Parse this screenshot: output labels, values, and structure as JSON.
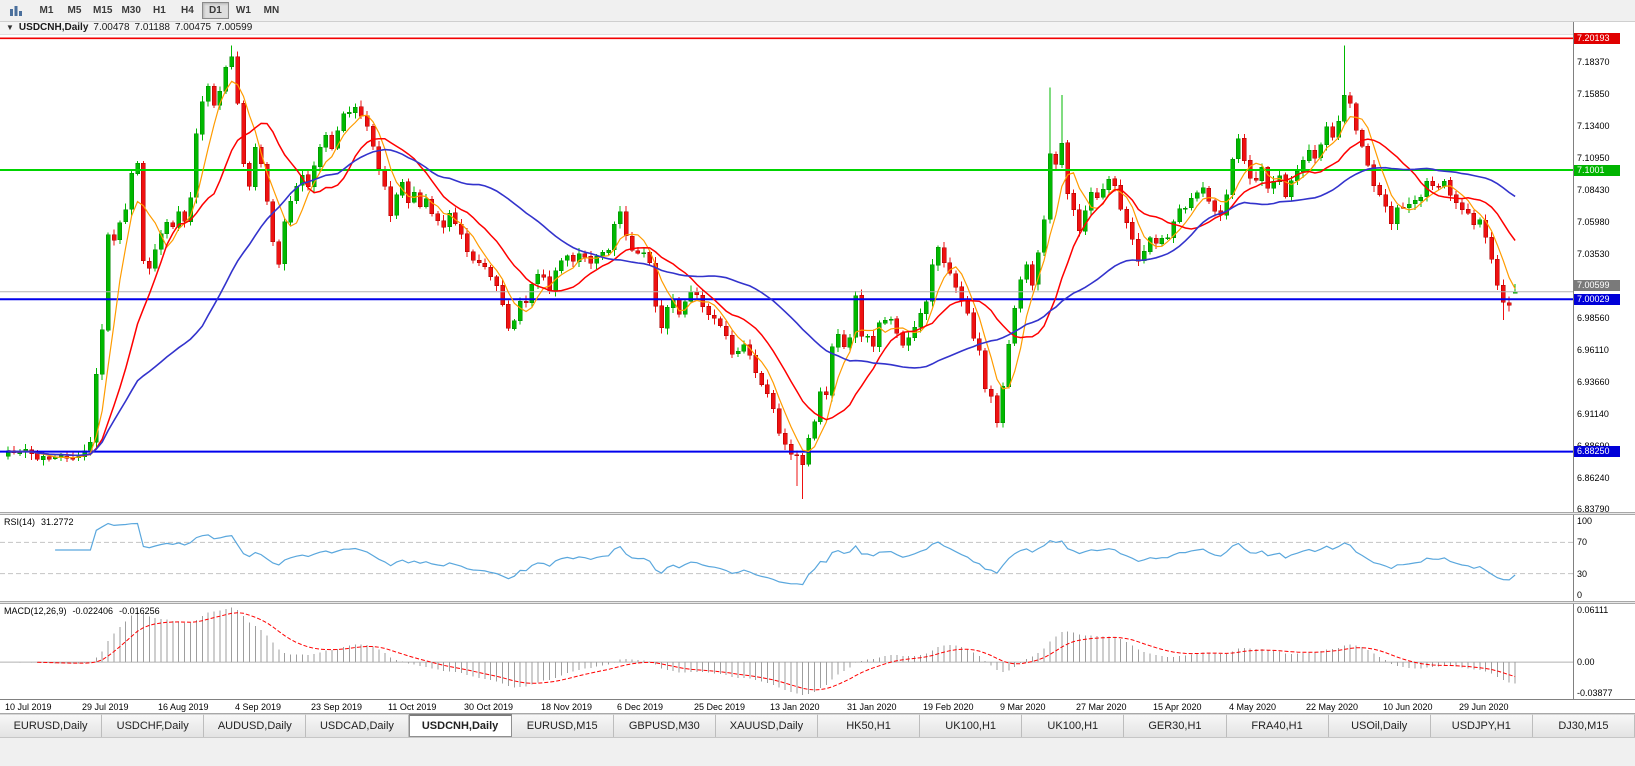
{
  "toolbar": {
    "timeframes": [
      {
        "label": "M1",
        "active": false
      },
      {
        "label": "M5",
        "active": false
      },
      {
        "label": "M15",
        "active": false
      },
      {
        "label": "M30",
        "active": false
      },
      {
        "label": "H1",
        "active": false
      },
      {
        "label": "H4",
        "active": false
      },
      {
        "label": "D1",
        "active": true
      },
      {
        "label": "W1",
        "active": false
      },
      {
        "label": "MN",
        "active": false
      }
    ]
  },
  "chart": {
    "title": {
      "symbol": "USDCNH,Daily",
      "open": "7.00478",
      "high": "7.01188",
      "low": "7.00475",
      "close": "7.00599"
    },
    "price_scale": {
      "labels": [
        "7.18370",
        "7.15850",
        "7.13400",
        "7.10950",
        "7.08430",
        "7.05980",
        "7.03530",
        "7.01080",
        "6.98560",
        "6.96110",
        "6.93660",
        "6.91140",
        "6.88690",
        "6.86240",
        "6.83790"
      ]
    },
    "hlines": [
      {
        "price": 7.20193,
        "label": "7.20193",
        "color": "#f20000",
        "tag_bg": "#e00000",
        "w": 1.6
      },
      {
        "price": 7.1001,
        "label": "7.1001",
        "color": "#00d400",
        "tag_bg": "#00b400",
        "w": 2
      },
      {
        "price": 7.00029,
        "label": "7.00029",
        "color": "#0000ee",
        "tag_bg": "#0000d8",
        "w": 2
      },
      {
        "price": 6.8825,
        "label": "6.88250",
        "color": "#0000ee",
        "tag_bg": "#0000d8",
        "w": 2
      }
    ],
    "current_price": {
      "price": 7.00599,
      "label": "7.00599",
      "line_color": "#b4b4b4",
      "tag_bg": "#7a7a7a"
    },
    "time_axis": [
      {
        "text": "10 Jul 2019",
        "i": 0
      },
      {
        "text": "29 Jul 2019",
        "i": 13
      },
      {
        "text": "16 Aug 2019",
        "i": 26
      },
      {
        "text": "4 Sep 2019",
        "i": 39
      },
      {
        "text": "23 Sep 2019",
        "i": 52
      },
      {
        "text": "11 Oct 2019",
        "i": 65
      },
      {
        "text": "30 Oct 2019",
        "i": 78
      },
      {
        "text": "18 Nov 2019",
        "i": 91
      },
      {
        "text": "6 Dec 2019",
        "i": 104
      },
      {
        "text": "25 Dec 2019",
        "i": 117
      },
      {
        "text": "13 Jan 2020",
        "i": 130
      },
      {
        "text": "31 Jan 2020",
        "i": 143
      },
      {
        "text": "19 Feb 2020",
        "i": 156
      },
      {
        "text": "9 Mar 2020",
        "i": 169
      },
      {
        "text": "27 Mar 2020",
        "i": 182
      },
      {
        "text": "15 Apr 2020",
        "i": 195
      },
      {
        "text": "4 May 2020",
        "i": 208
      },
      {
        "text": "22 May 2020",
        "i": 221
      },
      {
        "text": "10 Jun 2020",
        "i": 234
      },
      {
        "text": "29 Jun 2020",
        "i": 247
      }
    ],
    "candles": {
      "count": 257,
      "up_color": "#00b800",
      "down_color": "#ee1111",
      "up_stroke": "#008800",
      "down_stroke": "#aa0000",
      "anchors": [
        [
          0,
          6.881
        ],
        [
          3,
          6.8845
        ],
        [
          5,
          6.876
        ],
        [
          8,
          6.8805
        ],
        [
          11,
          6.8775
        ],
        [
          13,
          6.883
        ],
        [
          14,
          6.89
        ],
        [
          15,
          6.942
        ],
        [
          16,
          6.975
        ],
        [
          17,
          7.05
        ],
        [
          18,
          7.046
        ],
        [
          19,
          7.061
        ],
        [
          20,
          7.072
        ],
        [
          21,
          7.096
        ],
        [
          22,
          7.106
        ],
        [
          23,
          7.032
        ],
        [
          24,
          7.026
        ],
        [
          25,
          7.04
        ],
        [
          26,
          7.05
        ],
        [
          27,
          7.06
        ],
        [
          28,
          7.054
        ],
        [
          29,
          7.066
        ],
        [
          30,
          7.059
        ],
        [
          31,
          7.08
        ],
        [
          32,
          7.128
        ],
        [
          33,
          7.154
        ],
        [
          34,
          7.164
        ],
        [
          35,
          7.15
        ],
        [
          36,
          7.16
        ],
        [
          37,
          7.178
        ],
        [
          38,
          7.188
        ],
        [
          39,
          7.15
        ],
        [
          40,
          7.104
        ],
        [
          41,
          7.09
        ],
        [
          42,
          7.116
        ],
        [
          43,
          7.104
        ],
        [
          44,
          7.076
        ],
        [
          45,
          7.046
        ],
        [
          46,
          7.028
        ],
        [
          47,
          7.058
        ],
        [
          48,
          7.078
        ],
        [
          49,
          7.088
        ],
        [
          50,
          7.094
        ],
        [
          51,
          7.086
        ],
        [
          52,
          7.104
        ],
        [
          53,
          7.116
        ],
        [
          54,
          7.126
        ],
        [
          55,
          7.118
        ],
        [
          56,
          7.132
        ],
        [
          57,
          7.146
        ],
        [
          59,
          7.148
        ],
        [
          61,
          7.133
        ],
        [
          63,
          7.103
        ],
        [
          64,
          7.086
        ],
        [
          65,
          7.066
        ],
        [
          66,
          7.08
        ],
        [
          67,
          7.093
        ],
        [
          68,
          7.076
        ],
        [
          69,
          7.083
        ],
        [
          70,
          7.07
        ],
        [
          71,
          7.08
        ],
        [
          72,
          7.068
        ],
        [
          74,
          7.056
        ],
        [
          75,
          7.068
        ],
        [
          77,
          7.05
        ],
        [
          78,
          7.038
        ],
        [
          79,
          7.03
        ],
        [
          81,
          7.026
        ],
        [
          82,
          7.02
        ],
        [
          83,
          7.01
        ],
        [
          84,
          6.996
        ],
        [
          85,
          6.976
        ],
        [
          86,
          6.986
        ],
        [
          87,
          7.0
        ],
        [
          88,
          6.996
        ],
        [
          89,
          7.01
        ],
        [
          90,
          7.02
        ],
        [
          91,
          7.016
        ],
        [
          92,
          7.006
        ],
        [
          93,
          7.02
        ],
        [
          95,
          7.036
        ],
        [
          96,
          7.028
        ],
        [
          97,
          7.036
        ],
        [
          99,
          7.026
        ],
        [
          100,
          7.033
        ],
        [
          102,
          7.038
        ],
        [
          103,
          7.06
        ],
        [
          104,
          7.066
        ],
        [
          105,
          7.05
        ],
        [
          106,
          7.036
        ],
        [
          108,
          7.036
        ],
        [
          109,
          7.03
        ],
        [
          110,
          6.996
        ],
        [
          111,
          6.98
        ],
        [
          112,
          6.996
        ],
        [
          113,
          7.0
        ],
        [
          114,
          6.99
        ],
        [
          116,
          7.006
        ],
        [
          117,
          7.003
        ],
        [
          119,
          6.99
        ],
        [
          121,
          6.98
        ],
        [
          122,
          6.97
        ],
        [
          123,
          6.96
        ],
        [
          124,
          6.958
        ],
        [
          125,
          6.966
        ],
        [
          126,
          6.956
        ],
        [
          127,
          6.943
        ],
        [
          129,
          6.928
        ],
        [
          130,
          6.916
        ],
        [
          131,
          6.896
        ],
        [
          132,
          6.886
        ],
        [
          134,
          6.878
        ],
        [
          135,
          6.87
        ],
        [
          136,
          6.894
        ],
        [
          137,
          6.906
        ],
        [
          138,
          6.93
        ],
        [
          139,
          6.926
        ],
        [
          140,
          6.966
        ],
        [
          141,
          6.973
        ],
        [
          142,
          6.966
        ],
        [
          143,
          6.97
        ],
        [
          144,
          7.002
        ],
        [
          145,
          6.974
        ],
        [
          147,
          6.966
        ],
        [
          148,
          6.98
        ],
        [
          150,
          6.983
        ],
        [
          152,
          6.963
        ],
        [
          154,
          6.98
        ],
        [
          155,
          6.99
        ],
        [
          156,
          7.0
        ],
        [
          157,
          7.026
        ],
        [
          158,
          7.04
        ],
        [
          159,
          7.03
        ],
        [
          161,
          7.01
        ],
        [
          163,
          6.99
        ],
        [
          164,
          6.97
        ],
        [
          165,
          6.96
        ],
        [
          166,
          6.93
        ],
        [
          167,
          6.926
        ],
        [
          168,
          6.905
        ],
        [
          169,
          6.932
        ],
        [
          170,
          6.968
        ],
        [
          171,
          6.995
        ],
        [
          172,
          7.016
        ],
        [
          173,
          7.025
        ],
        [
          174,
          7.01
        ],
        [
          175,
          7.036
        ],
        [
          176,
          7.06
        ],
        [
          177,
          7.115
        ],
        [
          178,
          7.105
        ],
        [
          179,
          7.12
        ],
        [
          180,
          7.08
        ],
        [
          181,
          7.07
        ],
        [
          182,
          7.052
        ],
        [
          184,
          7.082
        ],
        [
          185,
          7.078
        ],
        [
          186,
          7.085
        ],
        [
          187,
          7.095
        ],
        [
          188,
          7.088
        ],
        [
          189,
          7.07
        ],
        [
          191,
          7.046
        ],
        [
          192,
          7.03
        ],
        [
          193,
          7.036
        ],
        [
          194,
          7.05
        ],
        [
          195,
          7.046
        ],
        [
          197,
          7.05
        ],
        [
          199,
          7.07
        ],
        [
          201,
          7.076
        ],
        [
          203,
          7.086
        ],
        [
          205,
          7.07
        ],
        [
          206,
          7.063
        ],
        [
          207,
          7.083
        ],
        [
          208,
          7.108
        ],
        [
          209,
          7.126
        ],
        [
          210,
          7.106
        ],
        [
          211,
          7.096
        ],
        [
          212,
          7.09
        ],
        [
          213,
          7.1
        ],
        [
          214,
          7.086
        ],
        [
          216,
          7.096
        ],
        [
          217,
          7.08
        ],
        [
          219,
          7.1
        ],
        [
          220,
          7.106
        ],
        [
          221,
          7.116
        ],
        [
          222,
          7.11
        ],
        [
          223,
          7.12
        ],
        [
          224,
          7.136
        ],
        [
          225,
          7.126
        ],
        [
          226,
          7.14
        ],
        [
          227,
          7.16
        ],
        [
          228,
          7.15
        ],
        [
          229,
          7.13
        ],
        [
          230,
          7.12
        ],
        [
          232,
          7.09
        ],
        [
          234,
          7.07
        ],
        [
          235,
          7.06
        ],
        [
          236,
          7.07
        ],
        [
          238,
          7.076
        ],
        [
          240,
          7.08
        ],
        [
          241,
          7.09
        ],
        [
          243,
          7.086
        ],
        [
          244,
          7.09
        ],
        [
          246,
          7.076
        ],
        [
          247,
          7.07
        ],
        [
          249,
          7.06
        ],
        [
          250,
          7.063
        ],
        [
          251,
          7.05
        ],
        [
          252,
          7.03
        ],
        [
          253,
          7.01
        ],
        [
          254,
          7.0
        ],
        [
          255,
          6.998
        ],
        [
          256,
          7.006
        ]
      ],
      "overrides": {
        "38": {
          "h": 7.1965
        },
        "134": {
          "l": 6.856
        },
        "135": {
          "l": 6.846
        },
        "168": {
          "l": 6.901
        },
        "177": {
          "h": 7.164
        },
        "179": {
          "h": 7.158
        },
        "227": {
          "h": 7.1965
        },
        "254": {
          "l": 6.984
        },
        "256": {
          "o": 7.00478,
          "h": 7.01188,
          "l": 7.00475,
          "c": 7.00599
        }
      }
    },
    "mas": [
      {
        "name": "fast-ma",
        "period": 5,
        "color": "#ff9c00",
        "w": 1.2
      },
      {
        "name": "mid-ma",
        "period": 13,
        "color": "#ff0000",
        "w": 1.5
      },
      {
        "name": "slow-ma",
        "period": 34,
        "color": "#3333cc",
        "w": 1.6
      }
    ]
  },
  "rsi": {
    "label": "RSI(14)",
    "value": "31.2772",
    "period": 14,
    "color": "#5aa7dd",
    "levels": [
      {
        "v": 100,
        "text": "100",
        "dashed": false
      },
      {
        "v": 70,
        "text": "70",
        "dashed": true
      },
      {
        "v": 30,
        "text": "30",
        "dashed": true
      },
      {
        "v": 0,
        "text": "0",
        "dashed": false
      }
    ]
  },
  "macd": {
    "label": "MACD(12,26,9)",
    "value_main": "-0.022406",
    "value_signal": "-0.016256",
    "fast": 12,
    "slow": 26,
    "signal": 9,
    "hist_color": "#9e9e9e",
    "signal_color": "#ff0000",
    "scale": {
      "max": 0.06111,
      "min": -0.03877,
      "labels": [
        {
          "v": 0.06111,
          "text": "0.06111"
        },
        {
          "v": 0,
          "text": "0.00"
        },
        {
          "v": -0.03877,
          "text": "-0.03877"
        }
      ]
    }
  },
  "tabs": [
    {
      "label": "EURUSD,Daily",
      "active": false
    },
    {
      "label": "USDCHF,Daily",
      "active": false
    },
    {
      "label": "AUDUSD,Daily",
      "active": false
    },
    {
      "label": "USDCAD,Daily",
      "active": false
    },
    {
      "label": "USDCNH,Daily",
      "active": true
    },
    {
      "label": "EURUSD,M15",
      "active": false
    },
    {
      "label": "GBPUSD,M30",
      "active": false
    },
    {
      "label": "XAUUSD,Daily",
      "active": false
    },
    {
      "label": "HK50,H1",
      "active": false
    },
    {
      "label": "UK100,H1",
      "active": false
    },
    {
      "label": "UK100,H1",
      "active": false
    },
    {
      "label": "GER30,H1",
      "active": false
    },
    {
      "label": "FRA40,H1",
      "active": false
    },
    {
      "label": "USOil,Daily",
      "active": false
    },
    {
      "label": "USDJPY,H1",
      "active": false
    },
    {
      "label": "DJ30,M15",
      "active": false
    }
  ]
}
